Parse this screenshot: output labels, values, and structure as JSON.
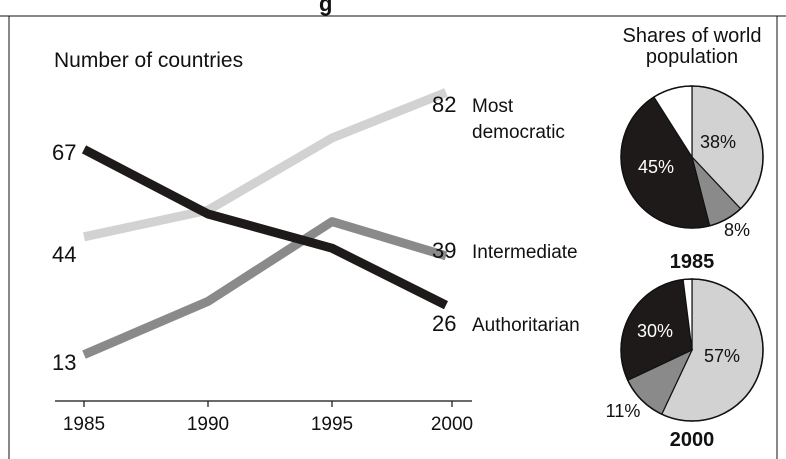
{
  "header": {
    "title_fragment": "g"
  },
  "chart_data": [
    {
      "type": "line",
      "ylabel": "Number of countries",
      "x": [
        "1985",
        "1990",
        "1995",
        "2000"
      ],
      "ylim": [
        0,
        95
      ],
      "grid": false,
      "series": [
        {
          "name": "Most democratic",
          "values": [
            44,
            51,
            70,
            82
          ],
          "start_label": "44",
          "end_label": "82",
          "color": "#d2d2d2"
        },
        {
          "name": "Intermediate",
          "values": [
            13,
            27,
            48,
            39
          ],
          "start_label": "13",
          "end_label": "39",
          "color": "#8a8a8a"
        },
        {
          "name": "Authoritarian",
          "values": [
            67,
            50,
            41,
            26
          ],
          "start_label": "67",
          "end_label": "26",
          "color": "#1e1a1a"
        }
      ]
    },
    {
      "type": "pie",
      "title": "Shares of world population",
      "charts": [
        {
          "year": "1985",
          "slices": [
            {
              "category": "Most democratic",
              "value": 38,
              "label": "38%",
              "color": "#d2d2d2"
            },
            {
              "category": "Intermediate",
              "value": 8,
              "label": "8%",
              "color": "#8a8a8a"
            },
            {
              "category": "Authoritarian",
              "value": 45,
              "label": "45%",
              "color": "#1e1a1a"
            },
            {
              "category": "Other",
              "value": 9,
              "label": "",
              "color": "#ffffff"
            }
          ]
        },
        {
          "year": "2000",
          "slices": [
            {
              "category": "Most democratic",
              "value": 57,
              "label": "57%",
              "color": "#d2d2d2"
            },
            {
              "category": "Intermediate",
              "value": 11,
              "label": "11%",
              "color": "#8a8a8a"
            },
            {
              "category": "Authoritarian",
              "value": 30,
              "label": "30%",
              "color": "#1e1a1a"
            },
            {
              "category": "Other",
              "value": 2,
              "label": "",
              "color": "#ffffff"
            }
          ]
        }
      ]
    }
  ]
}
